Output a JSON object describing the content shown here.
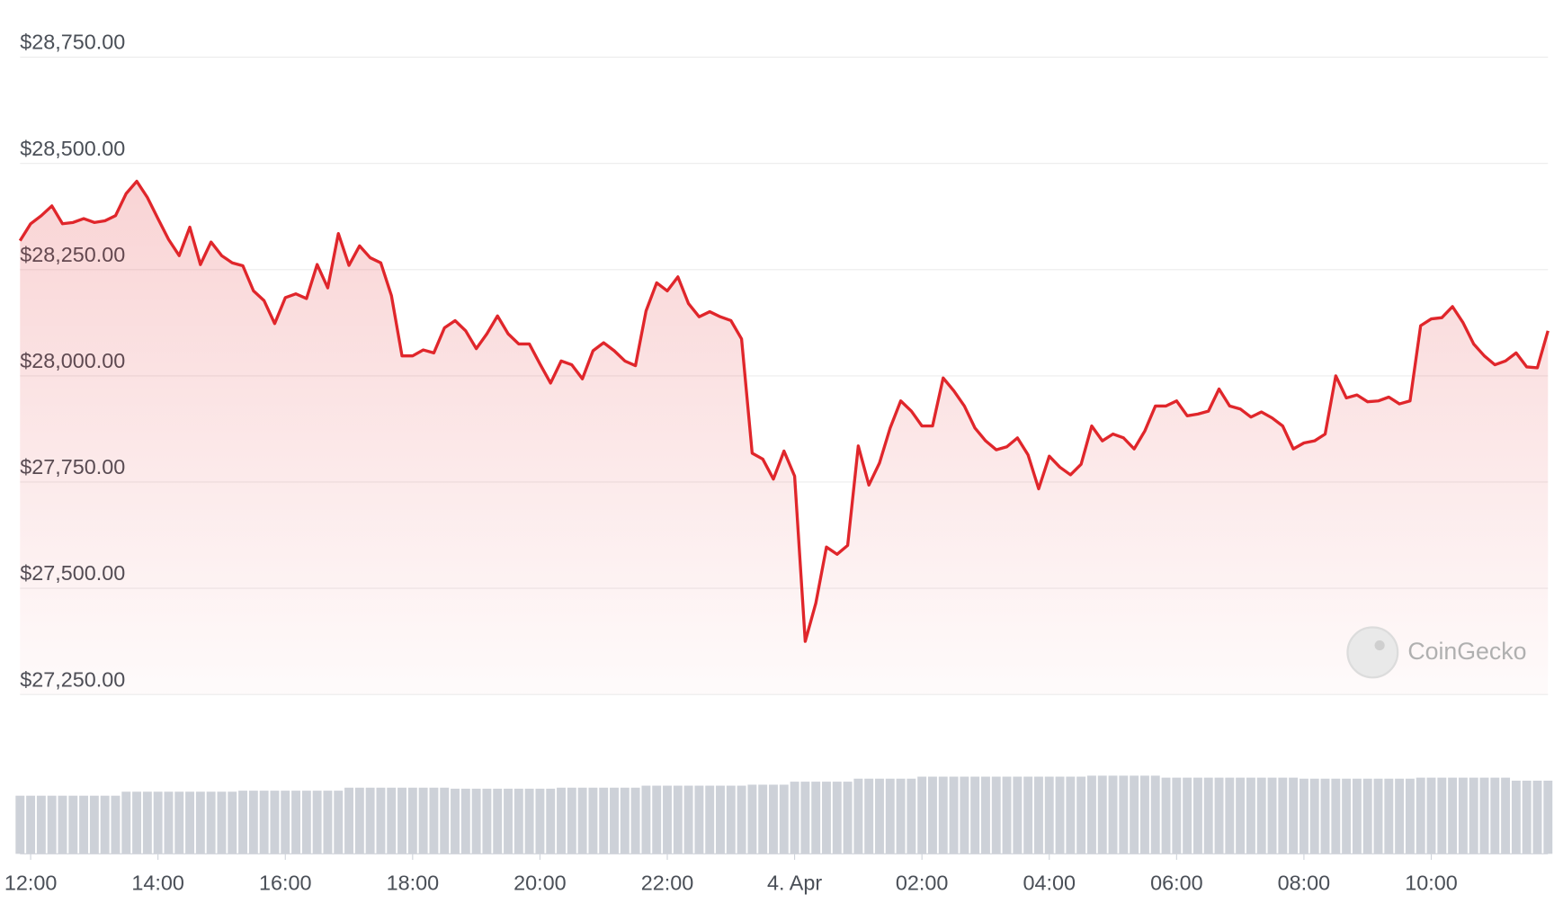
{
  "chart_data": {
    "type": "line",
    "color": "#e0262b",
    "grid": true,
    "ylim": [
      27250,
      28750
    ],
    "yticks": [
      {
        "value": 27250,
        "label": "$27,250.00"
      },
      {
        "value": 27500,
        "label": "$27,500.00"
      },
      {
        "value": 27750,
        "label": "$27,750.00"
      },
      {
        "value": 28000,
        "label": "$28,000.00"
      },
      {
        "value": 28250,
        "label": "$28,250.00"
      },
      {
        "value": 28500,
        "label": "$28,500.00"
      },
      {
        "value": 28750,
        "label": "$28,750.00"
      }
    ],
    "xticks": [
      "12:00",
      "14:00",
      "16:00",
      "18:00",
      "20:00",
      "22:00",
      {
        "value": "00:00",
        "label": "4. Apr"
      },
      "02:00",
      "04:00",
      "06:00",
      "08:00",
      "10:00"
    ],
    "x": [
      "11:50",
      "12:00",
      "12:10",
      "12:20",
      "12:30",
      "12:40",
      "12:50",
      "13:00",
      "13:10",
      "13:20",
      "13:30",
      "13:40",
      "13:50",
      "14:00",
      "14:10",
      "14:20",
      "14:30",
      "14:40",
      "14:50",
      "15:00",
      "15:10",
      "15:20",
      "15:30",
      "15:40",
      "15:50",
      "16:00",
      "16:10",
      "16:20",
      "16:30",
      "16:40",
      "16:50",
      "17:00",
      "17:10",
      "17:20",
      "17:30",
      "17:40",
      "17:50",
      "18:00",
      "18:10",
      "18:20",
      "18:30",
      "18:40",
      "18:50",
      "19:00",
      "19:10",
      "19:20",
      "19:30",
      "19:40",
      "19:50",
      "20:00",
      "20:10",
      "20:20",
      "20:30",
      "20:40",
      "20:50",
      "21:00",
      "21:10",
      "21:20",
      "21:30",
      "21:40",
      "21:50",
      "22:00",
      "22:10",
      "22:20",
      "22:30",
      "22:40",
      "22:50",
      "23:00",
      "23:10",
      "23:20",
      "23:30",
      "23:40",
      "23:50",
      "00:00",
      "00:10",
      "00:20",
      "00:30",
      "00:40",
      "00:50",
      "01:00",
      "01:10",
      "01:20",
      "01:30",
      "01:40",
      "01:50",
      "02:00",
      "02:10",
      "02:20",
      "02:30",
      "02:40",
      "02:50",
      "03:00",
      "03:10",
      "03:20",
      "03:30",
      "03:40",
      "03:50",
      "04:00",
      "04:10",
      "04:20",
      "04:30",
      "04:40",
      "04:50",
      "05:00",
      "05:10",
      "05:20",
      "05:30",
      "05:40",
      "05:50",
      "06:00",
      "06:10",
      "06:20",
      "06:30",
      "06:40",
      "06:50",
      "07:00",
      "07:10",
      "07:20",
      "07:30",
      "07:40",
      "07:50",
      "08:00",
      "08:10",
      "08:20",
      "08:30",
      "08:40",
      "08:50",
      "09:00",
      "09:10",
      "09:20",
      "09:30",
      "09:40",
      "09:50",
      "10:00",
      "10:10",
      "10:20",
      "10:30",
      "10:40",
      "10:50",
      "11:00",
      "11:10",
      "11:20",
      "11:30",
      "11:40",
      "11:50"
    ],
    "values": [
      28318,
      28358,
      28377,
      28400,
      28358,
      28361,
      28370,
      28361,
      28365,
      28377,
      28429,
      28458,
      28420,
      28370,
      28321,
      28283,
      28350,
      28262,
      28315,
      28283,
      28266,
      28259,
      28200,
      28177,
      28123,
      28184,
      28193,
      28182,
      28262,
      28207,
      28335,
      28260,
      28306,
      28278,
      28266,
      28189,
      28047,
      28047,
      28061,
      28054,
      28113,
      28130,
      28106,
      28064,
      28099,
      28141,
      28099,
      28075,
      28075,
      28028,
      27983,
      28035,
      28026,
      27993,
      28059,
      28078,
      28059,
      28035,
      28024,
      28153,
      28219,
      28200,
      28233,
      28170,
      28139,
      28151,
      28139,
      28130,
      28087,
      27818,
      27804,
      27757,
      27823,
      27764,
      27375,
      27465,
      27597,
      27580,
      27601,
      27835,
      27743,
      27795,
      27877,
      27941,
      27917,
      27882,
      27882,
      27995,
      27965,
      27929,
      27877,
      27847,
      27826,
      27833,
      27854,
      27814,
      27734,
      27811,
      27785,
      27767,
      27792,
      27882,
      27847,
      27863,
      27854,
      27828,
      27870,
      27929,
      27929,
      27941,
      27906,
      27910,
      27917,
      27969,
      27929,
      27922,
      27903,
      27915,
      27901,
      27882,
      27828,
      27842,
      27847,
      27863,
      28000,
      27948,
      27955,
      27939,
      27941,
      27950,
      27934,
      27941,
      28118,
      28134,
      28137,
      28163,
      28125,
      28075,
      28047,
      28026,
      28035,
      28054,
      28021,
      28019,
      28106
    ],
    "volume_color": "#cdd1d8",
    "volume_ylim": [
      0,
      100
    ],
    "volume": [
      58,
      58,
      58,
      58,
      58,
      58,
      58,
      58,
      58,
      58,
      62,
      62,
      62,
      62,
      62,
      62,
      62,
      62,
      62,
      62,
      62,
      63,
      63,
      63,
      63,
      63,
      63,
      63,
      63,
      63,
      63,
      66,
      66,
      66,
      66,
      66,
      66,
      66,
      66,
      66,
      66,
      65,
      65,
      65,
      65,
      65,
      65,
      65,
      65,
      65,
      65,
      66,
      66,
      66,
      66,
      66,
      66,
      66,
      66,
      68,
      68,
      68,
      68,
      68,
      68,
      68,
      68,
      68,
      68,
      69,
      69,
      69,
      69,
      72,
      72,
      72,
      72,
      72,
      72,
      75,
      75,
      75,
      75,
      75,
      75,
      77,
      77,
      77,
      77,
      77,
      77,
      77,
      77,
      77,
      77,
      77,
      77,
      77,
      77,
      77,
      77,
      78,
      78,
      78,
      78,
      78,
      78,
      78,
      76,
      76,
      76,
      76,
      76,
      76,
      76,
      76,
      76,
      76,
      76,
      76,
      76,
      75,
      75,
      75,
      75,
      75,
      75,
      75,
      75,
      75,
      75,
      75,
      76,
      76,
      76,
      76,
      76,
      76,
      76,
      76,
      76,
      73,
      73,
      73,
      73
    ],
    "watermark": "CoinGecko"
  }
}
